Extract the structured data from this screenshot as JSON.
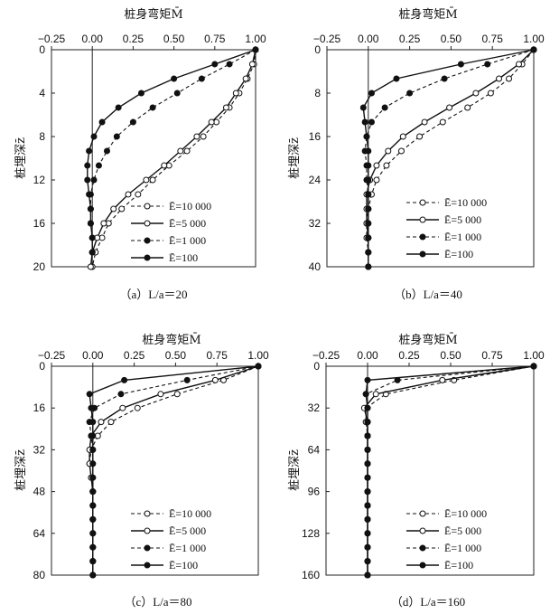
{
  "chart_data": [
    {
      "type": "line",
      "title": "桩身弯矩M̄",
      "xlabel": "桩身弯矩M̄",
      "ylabel": "桩埋深z̄",
      "caption": "（a）L/a＝20",
      "xlim": [
        -0.25,
        1.0
      ],
      "ylim": [
        0,
        20
      ],
      "x_ticks": [
        "−0.25",
        "0.00",
        "0.25",
        "0.50",
        "0.75",
        "1.00"
      ],
      "x_tick_values": [
        -0.25,
        0,
        0.25,
        0.5,
        0.75,
        1.0
      ],
      "y_ticks": [
        "0",
        "4",
        "8",
        "12",
        "16",
        "20"
      ],
      "y_tick_values": [
        0,
        4,
        8,
        12,
        16,
        20
      ],
      "series": [
        {
          "name": "Ē=10 000",
          "line": "dashed",
          "marker": "open",
          "depth": [
            0,
            1.33,
            2.67,
            4,
            5.33,
            6.67,
            8,
            9.33,
            10.67,
            12,
            13.33,
            14.67,
            16,
            17.33,
            18.67,
            20
          ],
          "moment": [
            1.0,
            0.99,
            0.95,
            0.9,
            0.84,
            0.76,
            0.68,
            0.58,
            0.47,
            0.37,
            0.28,
            0.18,
            0.1,
            0.06,
            0.02,
            0.0
          ]
        },
        {
          "name": "Ē=5 000",
          "line": "solid",
          "marker": "open",
          "depth": [
            0,
            1.33,
            2.67,
            4,
            5.33,
            6.67,
            8,
            9.33,
            10.67,
            12,
            13.33,
            14.67,
            16,
            17.33,
            18.67,
            20
          ],
          "moment": [
            1.0,
            0.98,
            0.94,
            0.88,
            0.82,
            0.73,
            0.64,
            0.54,
            0.44,
            0.33,
            0.22,
            0.13,
            0.07,
            0.03,
            0.0,
            -0.01
          ]
        },
        {
          "name": "Ē=1 000",
          "line": "dashed",
          "marker": "filled",
          "depth": [
            0,
            1.33,
            2.67,
            4,
            5.33,
            6.67,
            8,
            9.33,
            10.67,
            12,
            13.33,
            14.67,
            16,
            17.33,
            18.67
          ],
          "moment": [
            1.0,
            0.84,
            0.67,
            0.52,
            0.37,
            0.25,
            0.15,
            0.09,
            0.04,
            0.01,
            -0.01,
            -0.01,
            -0.01,
            0.0,
            0.0
          ]
        },
        {
          "name": "Ē=100",
          "line": "solid",
          "marker": "filled",
          "depth": [
            0,
            1.33,
            2.67,
            4,
            5.33,
            6.67,
            8,
            9.33,
            10.67,
            12,
            13.33,
            14.67,
            16,
            17.33,
            18.67
          ],
          "moment": [
            1.0,
            0.75,
            0.5,
            0.3,
            0.16,
            0.06,
            0.01,
            -0.02,
            -0.03,
            -0.03,
            -0.02,
            -0.01,
            -0.01,
            0.0,
            0.0
          ]
        }
      ]
    },
    {
      "type": "line",
      "title": "桩身弯矩M̄",
      "xlabel": "桩身弯矩M̄",
      "ylabel": "桩埋深z̄",
      "caption": "（b）L/a＝40",
      "xlim": [
        -0.25,
        1.0
      ],
      "ylim": [
        0,
        40
      ],
      "x_ticks": [
        "−0.25",
        "0.00",
        "0.25",
        "0.50",
        "0.75",
        "1.00"
      ],
      "x_tick_values": [
        -0.25,
        0,
        0.25,
        0.5,
        0.75,
        1.0
      ],
      "y_ticks": [
        "0",
        "8",
        "16",
        "24",
        "32",
        "40"
      ],
      "y_tick_values": [
        0,
        8,
        16,
        24,
        32,
        40
      ],
      "series": [
        {
          "name": "Ē=10 000",
          "line": "dashed",
          "marker": "open",
          "depth": [
            0,
            2.67,
            5.33,
            8,
            10.67,
            13.33,
            16,
            18.67,
            21.33,
            24,
            26.67,
            29.33,
            32,
            34.67,
            37.33,
            40
          ],
          "moment": [
            1.0,
            0.93,
            0.85,
            0.74,
            0.6,
            0.45,
            0.31,
            0.2,
            0.11,
            0.05,
            0.02,
            0.0,
            -0.01,
            -0.01,
            0.0,
            0.0
          ]
        },
        {
          "name": "Ē=5 000",
          "line": "solid",
          "marker": "open",
          "depth": [
            0,
            2.67,
            5.33,
            8,
            10.67,
            13.33,
            16,
            18.67,
            21.33,
            24,
            26.67,
            29.33,
            32,
            34.67,
            37.33,
            40
          ],
          "moment": [
            1.0,
            0.91,
            0.79,
            0.65,
            0.49,
            0.34,
            0.21,
            0.12,
            0.05,
            0.01,
            -0.01,
            -0.01,
            -0.01,
            0.0,
            0.0,
            0.0
          ]
        },
        {
          "name": "Ē=1 000",
          "line": "dashed",
          "marker": "filled",
          "depth": [
            0,
            2.67,
            5.33,
            8,
            10.67,
            13.33,
            16,
            18.67,
            21.33,
            24,
            26.67,
            29.33,
            32,
            34.67,
            37.33,
            40
          ],
          "moment": [
            1.0,
            0.72,
            0.46,
            0.25,
            0.1,
            0.02,
            -0.01,
            -0.02,
            -0.01,
            -0.01,
            0.0,
            0.0,
            0.0,
            0.0,
            0.0,
            0.0
          ]
        },
        {
          "name": "Ē=100",
          "line": "solid",
          "marker": "filled",
          "depth": [
            0,
            2.67,
            5.33,
            8,
            10.67,
            13.33,
            16,
            18.67,
            21.33,
            24,
            26.67,
            29.33,
            32,
            34.67,
            37.33,
            40
          ],
          "moment": [
            1.0,
            0.56,
            0.17,
            0.02,
            -0.03,
            -0.02,
            -0.01,
            0.0,
            0.0,
            0.0,
            0.0,
            0.0,
            0.0,
            0.0,
            0.0,
            0.0
          ]
        }
      ]
    },
    {
      "type": "line",
      "title": "桩身弯矩M̄",
      "xlabel": "桩身弯矩M̄",
      "ylabel": "桩埋深z̄",
      "caption": "（c）L/a＝80",
      "xlim": [
        -0.25,
        1.0
      ],
      "ylim": [
        0,
        80
      ],
      "x_ticks": [
        "−0.25",
        "0.00",
        "0.25",
        "0.50",
        "0.75",
        "1.00"
      ],
      "x_tick_values": [
        -0.25,
        0,
        0.25,
        0.5,
        0.75,
        1.0
      ],
      "y_ticks": [
        "0",
        "16",
        "32",
        "48",
        "64",
        "80"
      ],
      "y_tick_values": [
        0,
        16,
        32,
        48,
        64,
        80
      ],
      "series": [
        {
          "name": "Ē=10 000",
          "line": "dashed",
          "marker": "open",
          "depth": [
            0,
            5.33,
            10.67,
            16,
            21.33,
            26.67,
            32,
            37.33,
            42.67,
            48,
            53.33,
            58.67,
            64,
            69.33,
            74.67,
            80
          ],
          "moment": [
            1.0,
            0.79,
            0.51,
            0.27,
            0.11,
            0.03,
            -0.01,
            -0.02,
            -0.01,
            0.0,
            0.0,
            0.0,
            0.0,
            0.0,
            0.0,
            0.0
          ]
        },
        {
          "name": "Ē=5 000",
          "line": "solid",
          "marker": "open",
          "depth": [
            0,
            5.33,
            10.67,
            16,
            21.33,
            26.67,
            32,
            37.33,
            42.67,
            48,
            53.33,
            58.67,
            64,
            69.33,
            74.67,
            80
          ],
          "moment": [
            1.0,
            0.74,
            0.41,
            0.18,
            0.05,
            -0.01,
            -0.02,
            -0.02,
            -0.01,
            0.0,
            0.0,
            0.0,
            0.0,
            0.0,
            0.0,
            0.0
          ]
        },
        {
          "name": "Ē=1 000",
          "line": "dashed",
          "marker": "filled",
          "depth": [
            0,
            5.33,
            10.67,
            16,
            21.33,
            26.67,
            32,
            37.33,
            42.67,
            48,
            53.33,
            58.67,
            64,
            69.33,
            74.67,
            80
          ],
          "moment": [
            1.0,
            0.57,
            0.17,
            0.01,
            -0.02,
            -0.01,
            0.0,
            0.0,
            0.0,
            0.0,
            0.0,
            0.0,
            0.0,
            0.0,
            0.0,
            0.0
          ]
        },
        {
          "name": "Ē=100",
          "line": "solid",
          "marker": "filled",
          "depth": [
            0,
            5.33,
            10.67,
            16,
            21.33,
            26.67,
            32,
            37.33,
            42.67,
            48,
            53.33,
            58.67,
            64,
            69.33,
            74.67,
            80
          ],
          "moment": [
            1.0,
            0.19,
            -0.02,
            -0.01,
            0.0,
            0.0,
            0.0,
            0.0,
            0.0,
            0.0,
            0.0,
            0.0,
            0.0,
            0.0,
            0.0,
            0.0
          ]
        }
      ]
    },
    {
      "type": "line",
      "title": "桩身弯矩M̄",
      "xlabel": "桩身弯矩M̄",
      "ylabel": "桩埋深z̄",
      "caption": "（d）L/a＝160",
      "xlim": [
        -0.25,
        1.0
      ],
      "ylim": [
        0,
        160
      ],
      "x_ticks": [
        "−0.25",
        "0.00",
        "0.25",
        "0.50",
        "0.75",
        "1.00"
      ],
      "x_tick_values": [
        -0.25,
        0,
        0.25,
        0.5,
        0.75,
        1.0
      ],
      "y_ticks": [
        "0",
        "32",
        "64",
        "96",
        "128",
        "160"
      ],
      "y_tick_values": [
        0,
        32,
        64,
        96,
        128,
        160
      ],
      "series": [
        {
          "name": "Ē=10 000",
          "line": "dashed",
          "marker": "open",
          "depth": [
            0,
            10.67,
            21.33,
            32,
            42.67,
            53.33,
            64,
            74.67,
            85.33,
            96,
            106.67,
            117.33,
            128,
            138.67,
            149.33,
            160
          ],
          "moment": [
            1.0,
            0.52,
            0.11,
            -0.01,
            -0.01,
            0.0,
            0.0,
            0.0,
            0.0,
            0.0,
            0.0,
            0.0,
            0.0,
            0.0,
            0.0,
            0.0
          ]
        },
        {
          "name": "Ē=5 000",
          "line": "solid",
          "marker": "open",
          "depth": [
            0,
            10.67,
            21.33,
            32,
            42.67,
            53.33,
            64,
            74.67,
            85.33,
            96,
            106.67,
            117.33,
            128,
            138.67,
            149.33,
            160
          ],
          "moment": [
            1.0,
            0.45,
            0.05,
            -0.02,
            0.0,
            0.0,
            0.0,
            0.0,
            0.0,
            0.0,
            0.0,
            0.0,
            0.0,
            0.0,
            0.0,
            0.0
          ]
        },
        {
          "name": "Ē=1 000",
          "line": "dashed",
          "marker": "filled",
          "depth": [
            0,
            10.67,
            21.33,
            32,
            42.67,
            53.33,
            64,
            74.67,
            85.33,
            96,
            106.67,
            117.33,
            128,
            138.67,
            149.33,
            160
          ],
          "moment": [
            1.0,
            0.18,
            -0.01,
            0.0,
            0.0,
            0.0,
            0.0,
            0.0,
            0.0,
            0.0,
            0.0,
            0.0,
            0.0,
            0.0,
            0.0,
            0.0
          ]
        },
        {
          "name": "Ē=100",
          "line": "solid",
          "marker": "filled",
          "depth": [
            0,
            10.67,
            21.33,
            32,
            42.67,
            53.33,
            64,
            74.67,
            85.33,
            96,
            106.67,
            117.33,
            128,
            138.67,
            149.33,
            160
          ],
          "moment": [
            1.0,
            0.0,
            -0.01,
            0.0,
            0.0,
            0.0,
            0.0,
            0.0,
            0.0,
            0.0,
            0.0,
            0.0,
            0.0,
            0.0,
            0.0,
            0.0
          ]
        }
      ]
    }
  ]
}
